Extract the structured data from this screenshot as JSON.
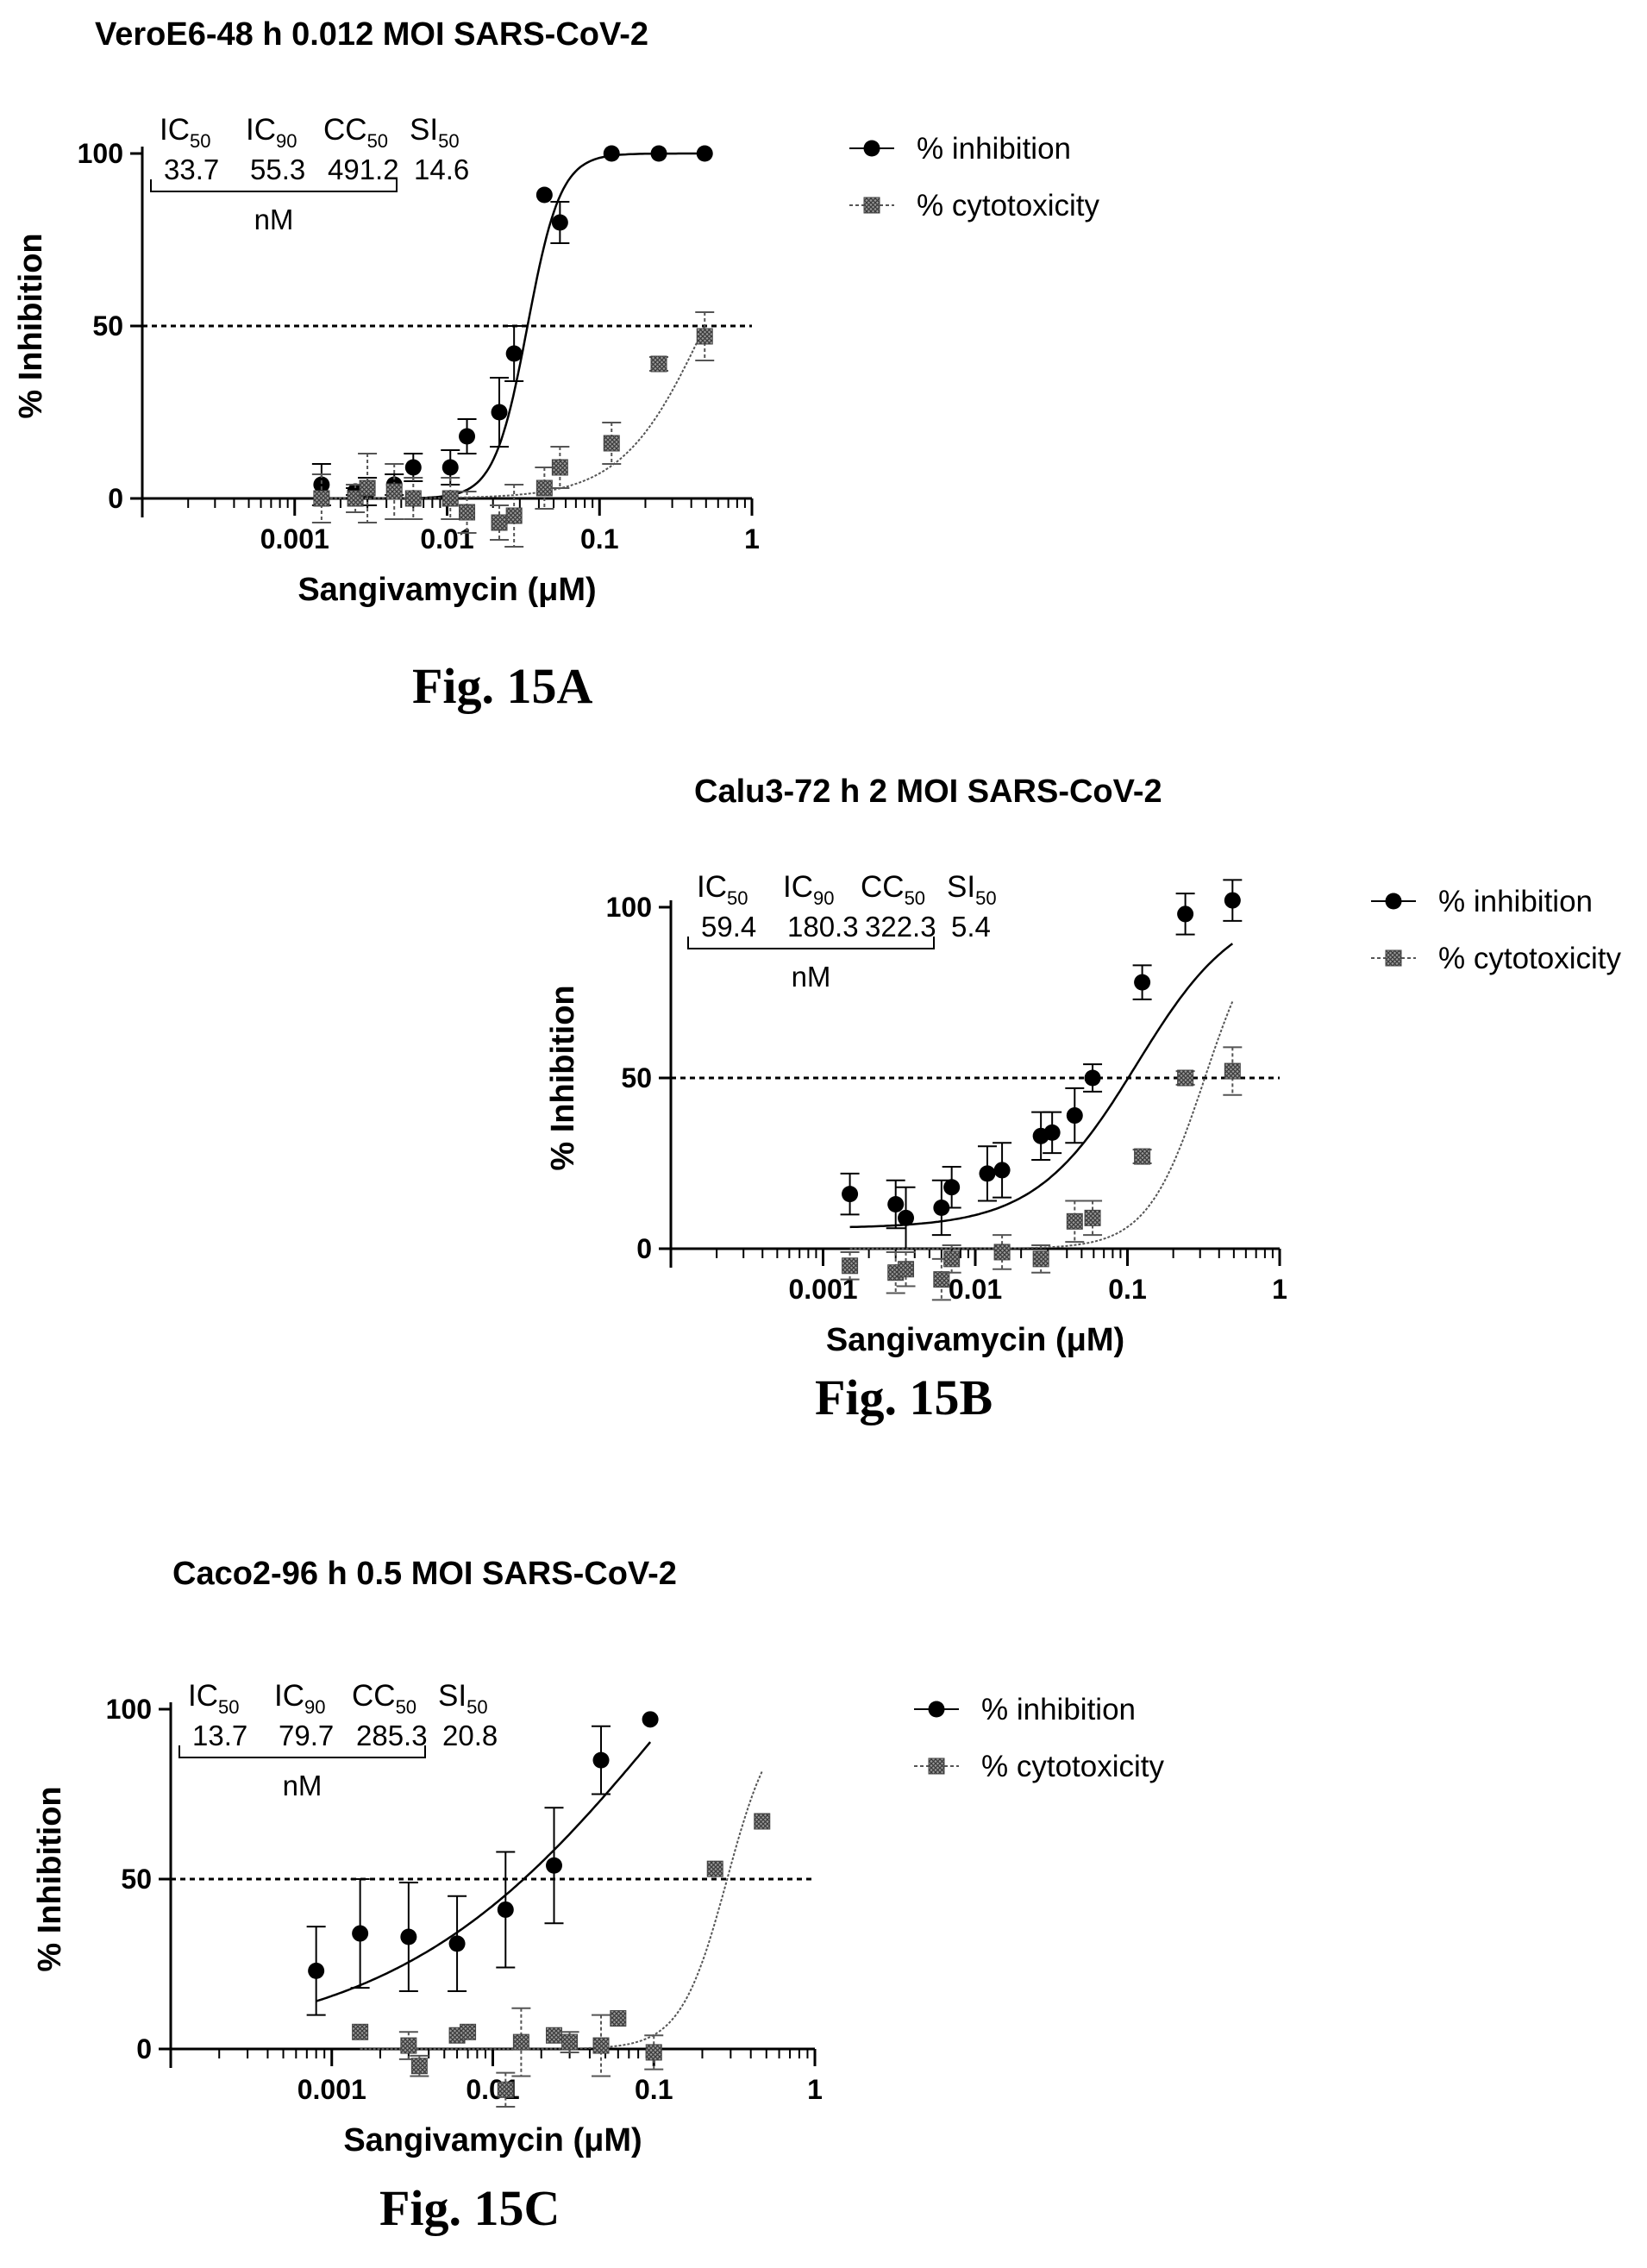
{
  "chart_data": [
    {
      "type": "scatter",
      "title": "VeroE6-48 h 0.012 MOI SARS-CoV-2",
      "caption": "Fig. 15A",
      "xlabel": "Sangivamycin (μM)",
      "ylabel": "% Inhibition",
      "xscale": "log",
      "xlim": [
        0.0001,
        1
      ],
      "ylim": [
        0,
        100
      ],
      "x_tick_labels": [
        "0.001",
        "0.01",
        "0.1",
        "1"
      ],
      "y_tick_labels": [
        "0",
        "50",
        "100"
      ],
      "reference_line": {
        "y": 50,
        "style": "dashed"
      },
      "legend": {
        "placement": "top-right",
        "entries": [
          "% inhibition",
          "% cytotoxicity"
        ]
      },
      "stats": {
        "headers": [
          {
            "main": "IC",
            "sub": "50"
          },
          {
            "main": "IC",
            "sub": "90"
          },
          {
            "main": "CC",
            "sub": "50"
          },
          {
            "main": "SI",
            "sub": "50"
          }
        ],
        "values": [
          "33.7",
          "55.3",
          "491.2",
          "14.6"
        ],
        "unit": "nM"
      },
      "series": [
        {
          "name": "% inhibition",
          "marker": "circle",
          "x": [
            0.0015,
            0.0025,
            0.003,
            0.0045,
            0.006,
            0.0105,
            0.0135,
            0.022,
            0.0275,
            0.0435,
            0.055,
            0.12,
            0.245,
            0.49
          ],
          "y": [
            4,
            2,
            2,
            4,
            9,
            9,
            18,
            25,
            42,
            88,
            80,
            100,
            100,
            100
          ],
          "err": [
            6,
            1,
            4,
            3,
            4,
            5,
            5,
            10,
            8,
            0,
            6,
            0,
            0,
            0
          ],
          "fit": {
            "bottom": 0,
            "top": 100,
            "ec50": 0.0337,
            "hill": 4.0
          }
        },
        {
          "name": "% cytotoxicity",
          "marker": "hatched-square",
          "x": [
            0.0015,
            0.0025,
            0.003,
            0.0045,
            0.006,
            0.0105,
            0.0135,
            0.022,
            0.0275,
            0.0435,
            0.055,
            0.12,
            0.245,
            0.49
          ],
          "y": [
            0,
            0,
            3,
            2,
            0,
            0,
            -4,
            -7,
            -5,
            3,
            9,
            16,
            39,
            47
          ],
          "err": [
            7,
            4,
            10,
            8,
            6,
            6,
            6,
            5,
            9,
            6,
            6,
            6,
            2,
            7
          ],
          "fit": {
            "bottom": 0,
            "top": 100,
            "ec50": 0.4912,
            "hill": 1.6
          }
        }
      ]
    },
    {
      "type": "scatter",
      "title": "Calu3-72 h 2 MOI SARS-CoV-2",
      "caption": "Fig. 15B",
      "xlabel": "Sangivamycin (μM)",
      "ylabel": "% Inhibition",
      "xscale": "log",
      "xlim": [
        0.0001,
        1
      ],
      "ylim": [
        0,
        100
      ],
      "x_tick_labels": [
        "0.001",
        "0.01",
        "0.1",
        "1"
      ],
      "y_tick_labels": [
        "0",
        "50",
        "100"
      ],
      "reference_line": {
        "y": 50,
        "style": "dashed"
      },
      "legend": {
        "placement": "top-right",
        "entries": [
          "% inhibition",
          "% cytotoxicity"
        ]
      },
      "stats": {
        "headers": [
          {
            "main": "IC",
            "sub": "50"
          },
          {
            "main": "IC",
            "sub": "90"
          },
          {
            "main": "CC",
            "sub": "50"
          },
          {
            "main": "SI",
            "sub": "50"
          }
        ],
        "values": [
          "59.4",
          "180.3",
          "322.3",
          "5.4"
        ],
        "unit": "nM"
      },
      "series": [
        {
          "name": "% inhibition",
          "marker": "circle",
          "x": [
            0.0015,
            0.003,
            0.0035,
            0.006,
            0.007,
            0.012,
            0.015,
            0.027,
            0.032,
            0.045,
            0.059,
            0.125,
            0.24,
            0.49
          ],
          "y": [
            16,
            13,
            9,
            12,
            18,
            22,
            23,
            33,
            34,
            39,
            50,
            78,
            98,
            102
          ],
          "err": [
            6,
            7,
            9,
            8,
            6,
            8,
            8,
            7,
            6,
            8,
            4,
            5,
            6,
            6
          ],
          "fit": {
            "bottom": 6,
            "top": 102,
            "ec50": 0.115,
            "hill": 1.3
          }
        },
        {
          "name": "% cytotoxicity",
          "marker": "hatched-square",
          "x": [
            0.0015,
            0.003,
            0.0035,
            0.006,
            0.007,
            0.015,
            0.027,
            0.045,
            0.059,
            0.125,
            0.24,
            0.49
          ],
          "y": [
            -5,
            -7,
            -6,
            -9,
            -3,
            -1,
            -3,
            8,
            9,
            27,
            50,
            52
          ],
          "err": [
            4,
            6,
            5,
            6,
            4,
            5,
            4,
            6,
            5,
            2,
            2,
            7
          ],
          "fit": {
            "bottom": 0,
            "top": 100,
            "ec50": 0.3223,
            "hill": 2.3
          }
        }
      ]
    },
    {
      "type": "scatter",
      "title": "Caco2-96 h 0.5 MOI SARS-CoV-2",
      "caption": "Fig. 15C",
      "xlabel": "Sangivamycin (μM)",
      "ylabel": "% Inhibition",
      "xscale": "log",
      "xlim": [
        0.0001,
        1
      ],
      "ylim": [
        0,
        100
      ],
      "x_tick_labels": [
        "0.001",
        "0.01",
        "0.1",
        "1"
      ],
      "y_tick_labels": [
        "0",
        "50",
        "100"
      ],
      "reference_line": {
        "y": 50,
        "style": "dashed"
      },
      "legend": {
        "placement": "top-right",
        "entries": [
          "% inhibition",
          "% cytotoxicity"
        ]
      },
      "stats": {
        "headers": [
          {
            "main": "IC",
            "sub": "50"
          },
          {
            "main": "IC",
            "sub": "90"
          },
          {
            "main": "CC",
            "sub": "50"
          },
          {
            "main": "SI",
            "sub": "50"
          }
        ],
        "values": [
          "13.7",
          "79.7",
          "285.3",
          "20.8"
        ],
        "unit": "nM"
      },
      "series": [
        {
          "name": "% inhibition",
          "marker": "circle",
          "x": [
            0.0008,
            0.0015,
            0.003,
            0.006,
            0.012,
            0.024,
            0.047,
            0.095
          ],
          "y": [
            23,
            34,
            33,
            31,
            41,
            54,
            85,
            97
          ],
          "err": [
            13,
            16,
            16,
            14,
            17,
            17,
            10,
            0
          ],
          "fit": {
            "bottom": 0,
            "top": 200,
            "ec50": 0.14,
            "hill": 0.5
          }
        },
        {
          "name": "% cytotoxicity",
          "marker": "hatched-square",
          "x": [
            0.0015,
            0.003,
            0.0035,
            0.006,
            0.007,
            0.012,
            0.015,
            0.024,
            0.03,
            0.047,
            0.06,
            0.1,
            0.24,
            0.47
          ],
          "y": [
            5,
            1,
            -5,
            4,
            5,
            -12,
            2,
            4,
            2,
            1,
            9,
            -1,
            53,
            67
          ],
          "err": [
            0,
            4,
            3,
            0,
            0,
            5,
            10,
            0,
            3,
            9,
            0,
            5,
            0,
            0
          ],
          "fit": {
            "bottom": 0,
            "top": 100,
            "ec50": 0.2853,
            "hill": 3.0
          }
        }
      ]
    }
  ]
}
